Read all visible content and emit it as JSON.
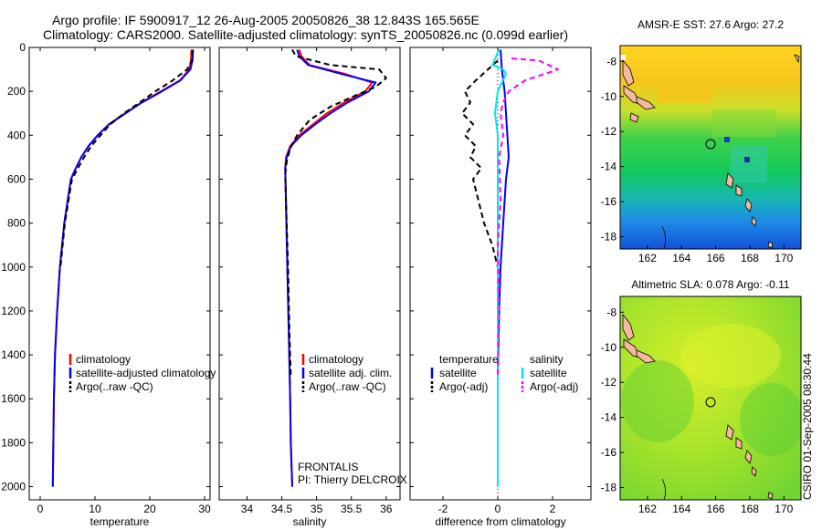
{
  "header": {
    "line1": "Argo profile: IF 5900917_12 26-Aug-2005 20050826_38 12.843S 165.565E",
    "line2": "Climatology: CARS2000. Satellite-adjusted climatology: synTS_20050826.nc (0.099d earlier)"
  },
  "side_text": "CSIRO 01-Sep-2005 08:30:44",
  "colors": {
    "climatology": "#ff0000",
    "satellite": "#0000ff",
    "argo": "#000000",
    "temp_sat": "#0000ff",
    "sal_sat": "#00e5ee",
    "sal_argo": "#ff00ff"
  },
  "chart_data": [
    {
      "type": "line",
      "xlabel": "temperature",
      "xlim": [
        -2,
        31
      ],
      "ylim": [
        2060,
        0
      ],
      "xticks": [
        0,
        10,
        20,
        30
      ],
      "yticks": [
        0,
        200,
        400,
        600,
        800,
        1000,
        1200,
        1400,
        1600,
        1800,
        2000
      ],
      "series": [
        {
          "name": "climatology",
          "color": "#ff0000",
          "dash": "",
          "x": [
            27.6,
            27.5,
            27.2,
            25.5,
            22,
            18.5,
            15.5,
            12.5,
            10.5,
            8.8,
            7.5,
            6.5,
            5.6,
            4.4,
            3.6,
            3.1,
            2.7,
            2.5,
            2.3
          ],
          "y": [
            10,
            60,
            100,
            150,
            200,
            250,
            300,
            350,
            400,
            450,
            500,
            550,
            600,
            800,
            1000,
            1200,
            1400,
            1600,
            2000
          ]
        },
        {
          "name": "satellite-adjusted climatology",
          "color": "#0000ff",
          "dash": "",
          "x": [
            27.9,
            27.8,
            27.4,
            25.6,
            22.2,
            18.6,
            15.6,
            12.6,
            10.5,
            8.8,
            7.5,
            6.5,
            5.6,
            4.4,
            3.6,
            3.1,
            2.7,
            2.5,
            2.3
          ],
          "y": [
            10,
            60,
            100,
            150,
            200,
            250,
            300,
            350,
            400,
            450,
            500,
            550,
            600,
            800,
            1000,
            1200,
            1400,
            1600,
            2000
          ]
        },
        {
          "name": "Argo(..raw -QC)",
          "color": "#000000",
          "dash": "6,4",
          "x": [
            27.8,
            27.7,
            26.8,
            24.2,
            21.0,
            18.2,
            15.3,
            12.8,
            11.0,
            9.3,
            8.0,
            6.9,
            5.8,
            4.5,
            3.7
          ],
          "y": [
            10,
            60,
            100,
            150,
            200,
            250,
            300,
            350,
            400,
            450,
            500,
            550,
            600,
            800,
            1000
          ]
        }
      ],
      "legend": [
        "climatology",
        "satellite-adjusted climatology",
        "Argo(..raw -QC)"
      ],
      "legend_position": "bottom-left"
    },
    {
      "type": "line",
      "xlabel": "salinity",
      "xlim": [
        33.6,
        36.2
      ],
      "ylim": [
        2060,
        0
      ],
      "xticks": [
        34,
        34.5,
        35,
        35.5,
        36
      ],
      "yticks": [],
      "series": [
        {
          "name": "climatology",
          "color": "#ff0000",
          "dash": "",
          "x": [
            34.75,
            34.78,
            34.9,
            35.4,
            35.8,
            35.7,
            35.4,
            35.15,
            34.95,
            34.75,
            34.62,
            34.56,
            34.55,
            34.56,
            34.58,
            34.6,
            34.62,
            34.63,
            34.65
          ],
          "y": [
            10,
            40,
            80,
            120,
            160,
            200,
            250,
            300,
            350,
            400,
            450,
            500,
            550,
            700,
            1000,
            1300,
            1600,
            1800,
            2000
          ]
        },
        {
          "name": "satellite adj. clim.",
          "color": "#0000ff",
          "dash": "",
          "x": [
            34.72,
            34.75,
            34.88,
            35.35,
            35.85,
            35.75,
            35.45,
            35.2,
            34.98,
            34.78,
            34.63,
            34.57,
            34.55,
            34.56,
            34.58,
            34.6,
            34.62,
            34.63,
            34.65
          ],
          "y": [
            10,
            40,
            80,
            120,
            160,
            200,
            250,
            300,
            350,
            400,
            450,
            500,
            550,
            700,
            1000,
            1300,
            1600,
            1800,
            2000
          ]
        },
        {
          "name": "Argo(..raw -QC)",
          "color": "#000000",
          "dash": "6,4",
          "x": [
            34.65,
            34.7,
            35.2,
            35.9,
            36.0,
            35.85,
            35.55,
            35.2,
            34.9,
            34.72,
            34.62,
            34.57,
            34.55,
            34.56,
            34.59,
            34.61,
            34.63
          ],
          "y": [
            10,
            40,
            80,
            100,
            140,
            180,
            220,
            270,
            330,
            400,
            460,
            520,
            580,
            700,
            1000,
            1300,
            1500
          ]
        }
      ],
      "legend": [
        "climatology",
        "satellite adj. clim.",
        "Argo(..raw -QC)"
      ],
      "legend_position": "bottom-left",
      "annotations": [
        "FRONTALIS",
        "PI: Thierry DELCROIX"
      ]
    },
    {
      "type": "line",
      "xlabel": "difference from climatology",
      "xlim": [
        -3.2,
        3.4
      ],
      "ylim": [
        2060,
        0
      ],
      "xticks": [
        -2,
        0,
        2
      ],
      "yticks": [],
      "series": [
        {
          "name": "temperature satellite",
          "color": "#0000ff",
          "dash": "",
          "x": [
            0.1,
            0.15,
            0.25,
            0.3,
            0.35,
            0.4,
            0.3,
            0.2,
            0.1,
            0.05,
            0,
            0
          ],
          "y": [
            10,
            100,
            200,
            300,
            400,
            500,
            600,
            800,
            1000,
            1200,
            1500,
            2000
          ]
        },
        {
          "name": "temperature Argo(-adj)",
          "color": "#000000",
          "dash": "6,4",
          "x": [
            0,
            -0.8,
            -1.2,
            -1.0,
            -1.3,
            -0.9,
            -1.2,
            -0.8,
            -1.0,
            -0.6,
            -0.9,
            -0.7,
            -0.5,
            -0.2,
            0
          ],
          "y": [
            60,
            150,
            200,
            250,
            300,
            350,
            400,
            450,
            500,
            550,
            600,
            700,
            800,
            900,
            1000
          ]
        },
        {
          "name": "salinity satellite",
          "color": "#00e5ee",
          "dash": "",
          "x": [
            0.05,
            -0.2,
            0.2,
            0.3,
            0.0,
            -0.1,
            0.0,
            0.0,
            0.0,
            0.0,
            0.0
          ],
          "y": [
            10,
            80,
            100,
            120,
            200,
            300,
            400,
            600,
            1000,
            1500,
            2000
          ]
        },
        {
          "name": "salinity Argo(-adj)",
          "color": "#ff00ff",
          "dash": "6,4",
          "x": [
            0.5,
            1.5,
            2.2,
            1.0,
            0.4,
            0.2,
            0.1,
            0.2,
            0.05,
            0.1,
            0.0,
            0.05,
            0.0
          ],
          "y": [
            50,
            60,
            100,
            150,
            200,
            250,
            300,
            400,
            500,
            700,
            900,
            1200,
            1500
          ]
        }
      ],
      "legend": [
        "temperature",
        "salinity",
        "satellite",
        "satellite",
        "Argo(-adj)",
        "Argo(-adj)"
      ],
      "legend_position": "bottom-left"
    }
  ],
  "maps": [
    {
      "title": "AMSR-E SST: 27.6 Argo: 27.2",
      "xticks": [
        "162",
        "164",
        "166",
        "168",
        "170"
      ],
      "yticks": [
        "-8",
        "-10",
        "-12",
        "-14",
        "-16",
        "-18"
      ],
      "lon_range": [
        160.4,
        171
      ],
      "lat_range": [
        -7.1,
        -18.7
      ],
      "argo_position": {
        "lon": 165.565,
        "lat": -12.843
      }
    },
    {
      "title": "Altimetric SLA: 0.078 Argo: -0.11",
      "xticks": [
        "162",
        "164",
        "166",
        "168",
        "170"
      ],
      "yticks": [
        "-8",
        "-10",
        "-12",
        "-14",
        "-16",
        "-18"
      ],
      "lon_range": [
        160.4,
        171
      ],
      "lat_range": [
        -7.1,
        -18.7
      ],
      "argo_position": {
        "lon": 165.565,
        "lat": -12.843
      }
    }
  ]
}
